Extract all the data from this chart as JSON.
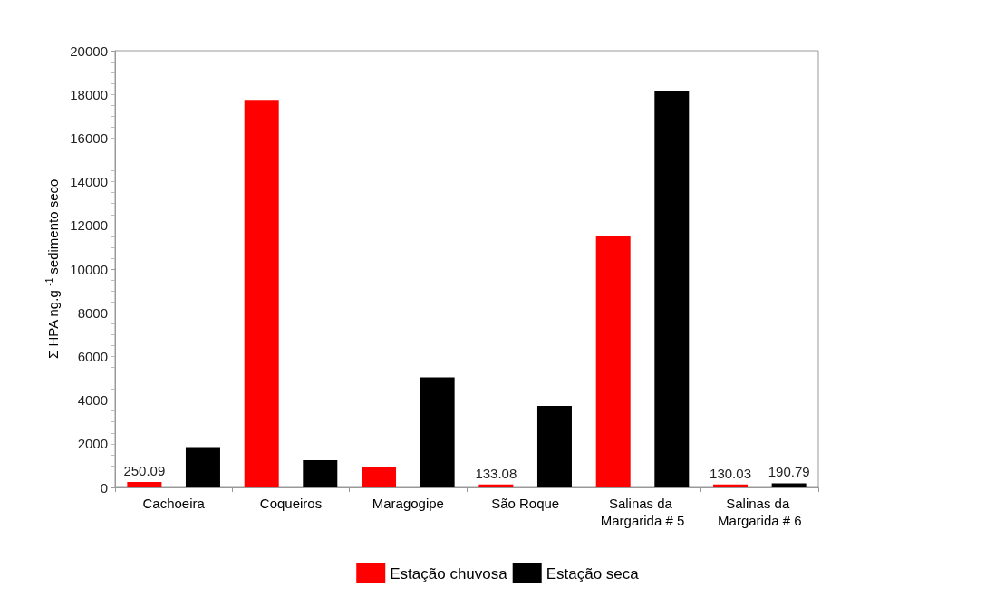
{
  "chart_data": {
    "type": "bar",
    "ylabel": "Σ HPA ng.g $^{-1}$ sedimento seco",
    "categories": [
      "Cachoeira",
      "Coqueiros",
      "Maragogipe",
      "São Roque",
      "Salinas da Margarida # 5",
      "Salinas da Margarida # 6"
    ],
    "series": [
      {
        "name": "Estação chuvosa",
        "color": "#ff0000",
        "values": [
          250.09,
          17750,
          930,
          133.08,
          11530,
          130.03
        ],
        "value_labels": [
          "250.09",
          null,
          null,
          "133.08",
          null,
          "130.03"
        ]
      },
      {
        "name": "Estação seca",
        "color": "#000000",
        "values": [
          1850,
          1250,
          5040,
          3730,
          18150,
          190.79
        ],
        "value_labels": [
          null,
          null,
          null,
          null,
          null,
          "190.79"
        ]
      }
    ],
    "ylim": [
      0,
      20000
    ],
    "yticks": [
      0,
      2000,
      4000,
      6000,
      8000,
      10000,
      12000,
      14000,
      16000,
      18000,
      20000
    ],
    "grid": false,
    "legend": "bottom"
  }
}
